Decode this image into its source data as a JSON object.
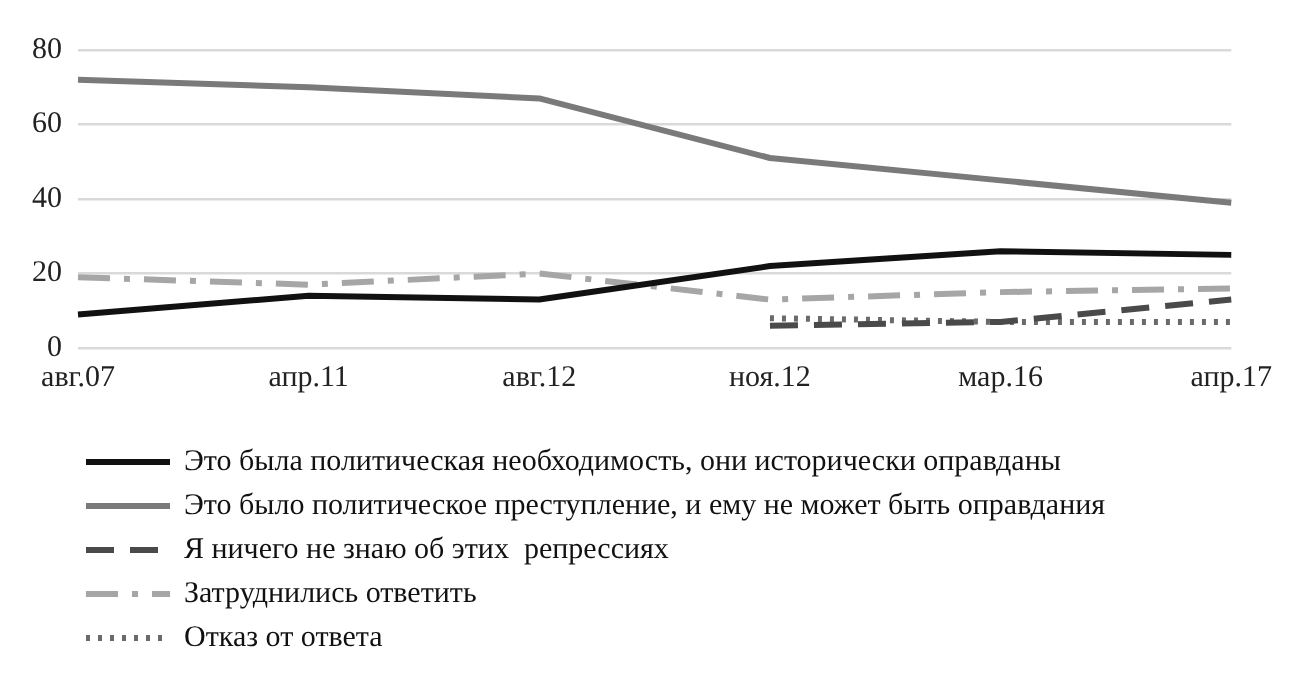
{
  "chart_data": {
    "type": "line",
    "categories": [
      "авг.07",
      "апр.11",
      "авг.12",
      "ноя.12",
      "мар.16",
      "апр.17"
    ],
    "series": [
      {
        "name": "Это была политическая необходимость, они исторически оправданы",
        "color": "#111111",
        "line_style": "solid",
        "values": [
          9,
          14,
          13,
          22,
          26,
          25
        ]
      },
      {
        "name": "Это было политическое преступление, и ему не может быть оправдания",
        "color": "#7a7a7a",
        "line_style": "solid",
        "values": [
          72,
          70,
          67,
          51,
          45,
          39
        ]
      },
      {
        "name": "Я ничего не знаю об этих  репрессиях",
        "color": "#4a4a4a",
        "line_style": "dashed",
        "values": [
          null,
          null,
          null,
          6,
          7,
          13
        ]
      },
      {
        "name": "Затруднились ответить",
        "color": "#a6a6a6",
        "line_style": "dashdot",
        "values": [
          19,
          17,
          20,
          13,
          15,
          16
        ]
      },
      {
        "name": "Отказ от ответа",
        "color": "#6a6a6a",
        "line_style": "dotted",
        "values": [
          null,
          null,
          null,
          8,
          7,
          7
        ]
      }
    ],
    "ylim": [
      0,
      80
    ],
    "yticks": [
      0,
      20,
      40,
      60,
      80
    ],
    "grid": "y",
    "legend": "bottom",
    "marker": "none"
  }
}
